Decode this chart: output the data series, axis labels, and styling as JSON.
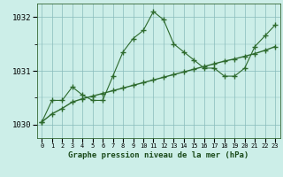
{
  "hours": [
    0,
    1,
    2,
    3,
    4,
    5,
    6,
    7,
    8,
    9,
    10,
    11,
    12,
    13,
    14,
    15,
    16,
    17,
    18,
    19,
    20,
    21,
    22,
    23
  ],
  "pressure_main": [
    1030.05,
    1030.45,
    1030.45,
    1030.7,
    1030.55,
    1030.45,
    1030.45,
    1030.9,
    1031.35,
    1031.6,
    1031.75,
    1032.1,
    1031.95,
    1031.5,
    1031.35,
    1031.2,
    1031.05,
    1031.05,
    1030.9,
    1030.9,
    1031.05,
    1031.45,
    1031.65,
    1031.85
  ],
  "pressure_smooth": [
    1030.05,
    1030.2,
    1030.3,
    1030.42,
    1030.48,
    1030.53,
    1030.58,
    1030.63,
    1030.68,
    1030.73,
    1030.78,
    1030.83,
    1030.88,
    1030.93,
    1030.98,
    1031.03,
    1031.08,
    1031.13,
    1031.18,
    1031.22,
    1031.27,
    1031.32,
    1031.38,
    1031.45
  ],
  "line_color": "#2d6a2d",
  "bg_color": "#cceee8",
  "grid_color": "#88bbbb",
  "title": "Graphe pression niveau de la mer (hPa)",
  "ylim_min": 1029.75,
  "ylim_max": 1032.25,
  "yticks": [
    1030,
    1031,
    1032
  ],
  "marker": "+",
  "marker_size": 4.0,
  "lw_main": 0.8,
  "lw_smooth": 1.0
}
